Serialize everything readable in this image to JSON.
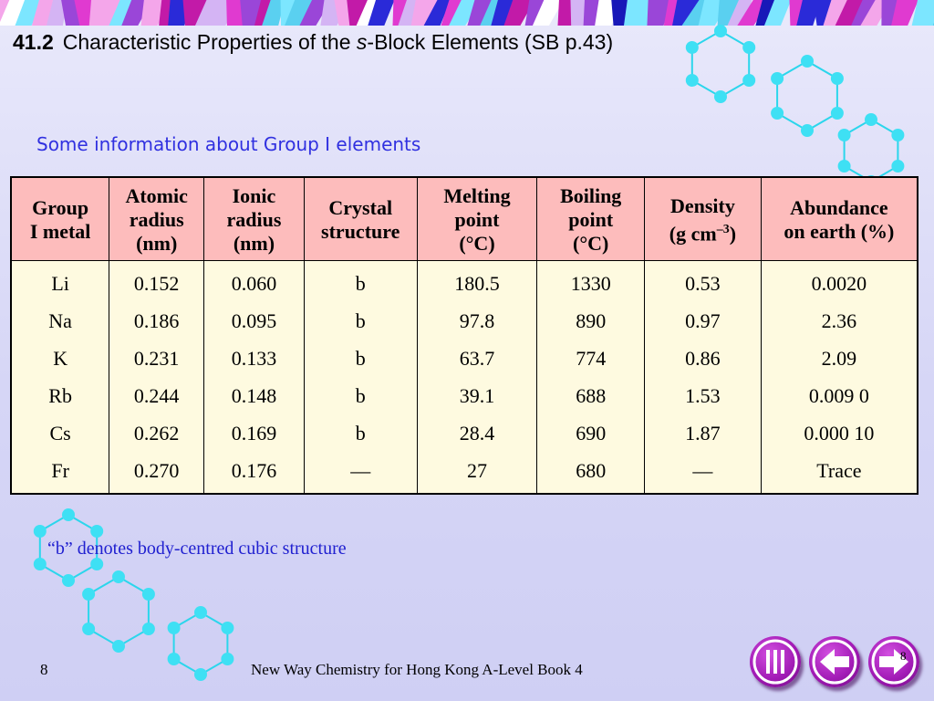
{
  "header": {
    "section_number": "41.2",
    "title_before": "Characteristic Properties of the ",
    "title_italic": "s",
    "title_after": "-Block Elements (SB p.43)"
  },
  "subtitle": "Some information about Group I elements",
  "table": {
    "headers": [
      [
        "Group",
        "I metal"
      ],
      [
        "Atomic",
        "radius",
        "(nm)"
      ],
      [
        "Ionic",
        "radius",
        "(nm)"
      ],
      [
        "Crystal",
        "structure"
      ],
      [
        "Melting",
        "point",
        "(°C)"
      ],
      [
        "Boiling",
        "point",
        "(°C)"
      ],
      [
        "Density",
        "(g cm",
        "–3",
        ")"
      ],
      [
        "Abundance",
        "on earth (%)"
      ]
    ],
    "rows": [
      [
        "Li",
        "0.152",
        "0.060",
        "b",
        "180.5",
        "1330",
        "0.53",
        "0.0020"
      ],
      [
        "Na",
        "0.186",
        "0.095",
        "b",
        "97.8",
        "890",
        "0.97",
        "2.36"
      ],
      [
        "K",
        "0.231",
        "0.133",
        "b",
        "63.7",
        "774",
        "0.86",
        "2.09"
      ],
      [
        "Rb",
        "0.244",
        "0.148",
        "b",
        "39.1",
        "688",
        "1.53",
        "0.009 0"
      ],
      [
        "Cs",
        "0.262",
        "0.169",
        "b",
        "28.4",
        "690",
        "1.87",
        "0.000 10"
      ],
      [
        "Fr",
        "0.270",
        "0.176",
        "—",
        "27",
        "680",
        "—",
        "Trace"
      ]
    ]
  },
  "note": "“b” denotes body-centred cubic structure",
  "footer": {
    "page_number": "8",
    "book_title": "New Way Chemistry for Hong Kong A-Level Book 4",
    "corner_number": "8"
  },
  "nav": {
    "menu_icon": "menu-bars-icon",
    "back_icon": "arrow-left-icon",
    "forward_icon": "arrow-right-icon"
  },
  "colors": {
    "header_fill": "#fdbcbc",
    "body_fill": "#fefae0",
    "subtitle": "#3030e0",
    "note": "#2020d0",
    "nav_button": "#a21bb6"
  }
}
